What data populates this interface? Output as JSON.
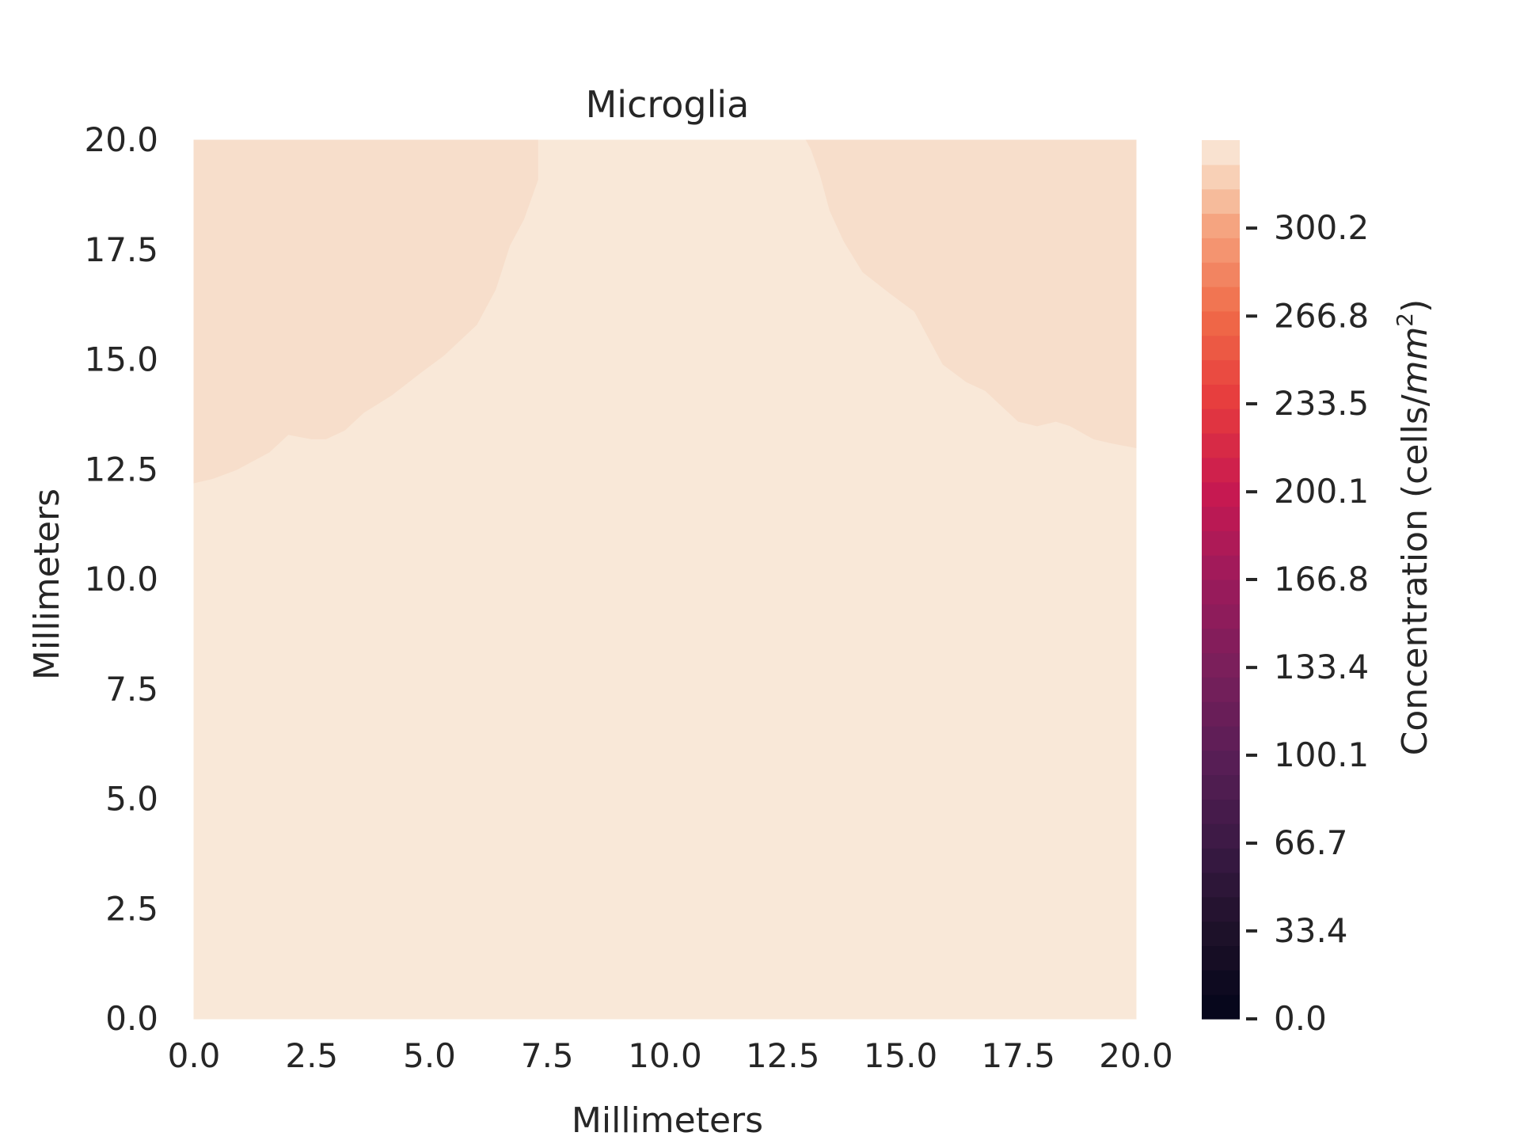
{
  "chart_data": {
    "type": "heatmap",
    "subtype": "filled-contour",
    "title": "Microglia",
    "xlabel": "Millimeters",
    "ylabel": "Millimeters",
    "xlim": [
      0,
      20
    ],
    "ylim": [
      0,
      20
    ],
    "xticks": [
      "0.0",
      "2.5",
      "5.0",
      "7.5",
      "10.0",
      "12.5",
      "15.0",
      "17.5",
      "20.0"
    ],
    "yticks": [
      "0.0",
      "2.5",
      "5.0",
      "7.5",
      "10.0",
      "12.5",
      "15.0",
      "17.5",
      "20.0"
    ],
    "colorbar": {
      "label_prefix": "Concentration (cells/",
      "label_unit": "mm",
      "label_exp": "2",
      "label_suffix": ")",
      "range": [
        0,
        333.6
      ],
      "ticks": [
        "0.0",
        "33.4",
        "66.7",
        "100.1",
        "133.4",
        "166.8",
        "200.1",
        "233.5",
        "266.8",
        "300.2"
      ],
      "tick_values": [
        0,
        33.4,
        66.7,
        100.1,
        133.4,
        166.8,
        200.1,
        233.5,
        266.8,
        300.2
      ],
      "levels": 36,
      "colormap": "rocket",
      "colormap_stops": [
        {
          "v": 0.0,
          "color": "#03051a"
        },
        {
          "v": 0.1,
          "color": "#1e1129"
        },
        {
          "v": 0.2,
          "color": "#3b1a45"
        },
        {
          "v": 0.3,
          "color": "#5a1e56"
        },
        {
          "v": 0.4,
          "color": "#7a1f5b"
        },
        {
          "v": 0.5,
          "color": "#9c1a5b"
        },
        {
          "v": 0.6,
          "color": "#c71951"
        },
        {
          "v": 0.7,
          "color": "#e63a3d"
        },
        {
          "v": 0.8,
          "color": "#f06a48"
        },
        {
          "v": 0.9,
          "color": "#f5a27d"
        },
        {
          "v": 0.95,
          "color": "#f7cbae"
        },
        {
          "v": 1.0,
          "color": "#faebdd"
        }
      ]
    },
    "regions": [
      {
        "name": "base-level",
        "level_value": 325,
        "color": "#f9e8d8",
        "polygon": [
          [
            0,
            0
          ],
          [
            20,
            0
          ],
          [
            20,
            20
          ],
          [
            0,
            20
          ]
        ]
      },
      {
        "name": "left-upper-band",
        "level_value": 318,
        "color": "#f7decb",
        "polygon": [
          [
            0,
            20
          ],
          [
            7.3,
            20
          ],
          [
            7.3,
            19.1
          ],
          [
            7.0,
            18.2
          ],
          [
            6.7,
            17.6
          ],
          [
            6.4,
            16.6
          ],
          [
            6.0,
            15.8
          ],
          [
            5.3,
            15.1
          ],
          [
            4.8,
            14.7
          ],
          [
            4.2,
            14.2
          ],
          [
            3.6,
            13.8
          ],
          [
            3.2,
            13.4
          ],
          [
            2.8,
            13.2
          ],
          [
            2.5,
            13.2
          ],
          [
            2.0,
            13.3
          ],
          [
            1.6,
            12.9
          ],
          [
            0.9,
            12.5
          ],
          [
            0.4,
            12.3
          ],
          [
            0,
            12.2
          ]
        ]
      },
      {
        "name": "right-upper-band",
        "level_value": 318,
        "color": "#f7decb",
        "polygon": [
          [
            13.0,
            20
          ],
          [
            20,
            20
          ],
          [
            20,
            13.0
          ],
          [
            19.5,
            13.1
          ],
          [
            19.1,
            13.2
          ],
          [
            18.6,
            13.5
          ],
          [
            18.3,
            13.6
          ],
          [
            17.9,
            13.5
          ],
          [
            17.5,
            13.6
          ],
          [
            17.1,
            14.0
          ],
          [
            16.8,
            14.3
          ],
          [
            16.4,
            14.5
          ],
          [
            15.9,
            14.9
          ],
          [
            15.6,
            15.5
          ],
          [
            15.3,
            16.1
          ],
          [
            14.8,
            16.5
          ],
          [
            14.2,
            17.0
          ],
          [
            13.8,
            17.7
          ],
          [
            13.5,
            18.4
          ],
          [
            13.3,
            19.2
          ],
          [
            13.1,
            19.8
          ]
        ]
      }
    ]
  }
}
